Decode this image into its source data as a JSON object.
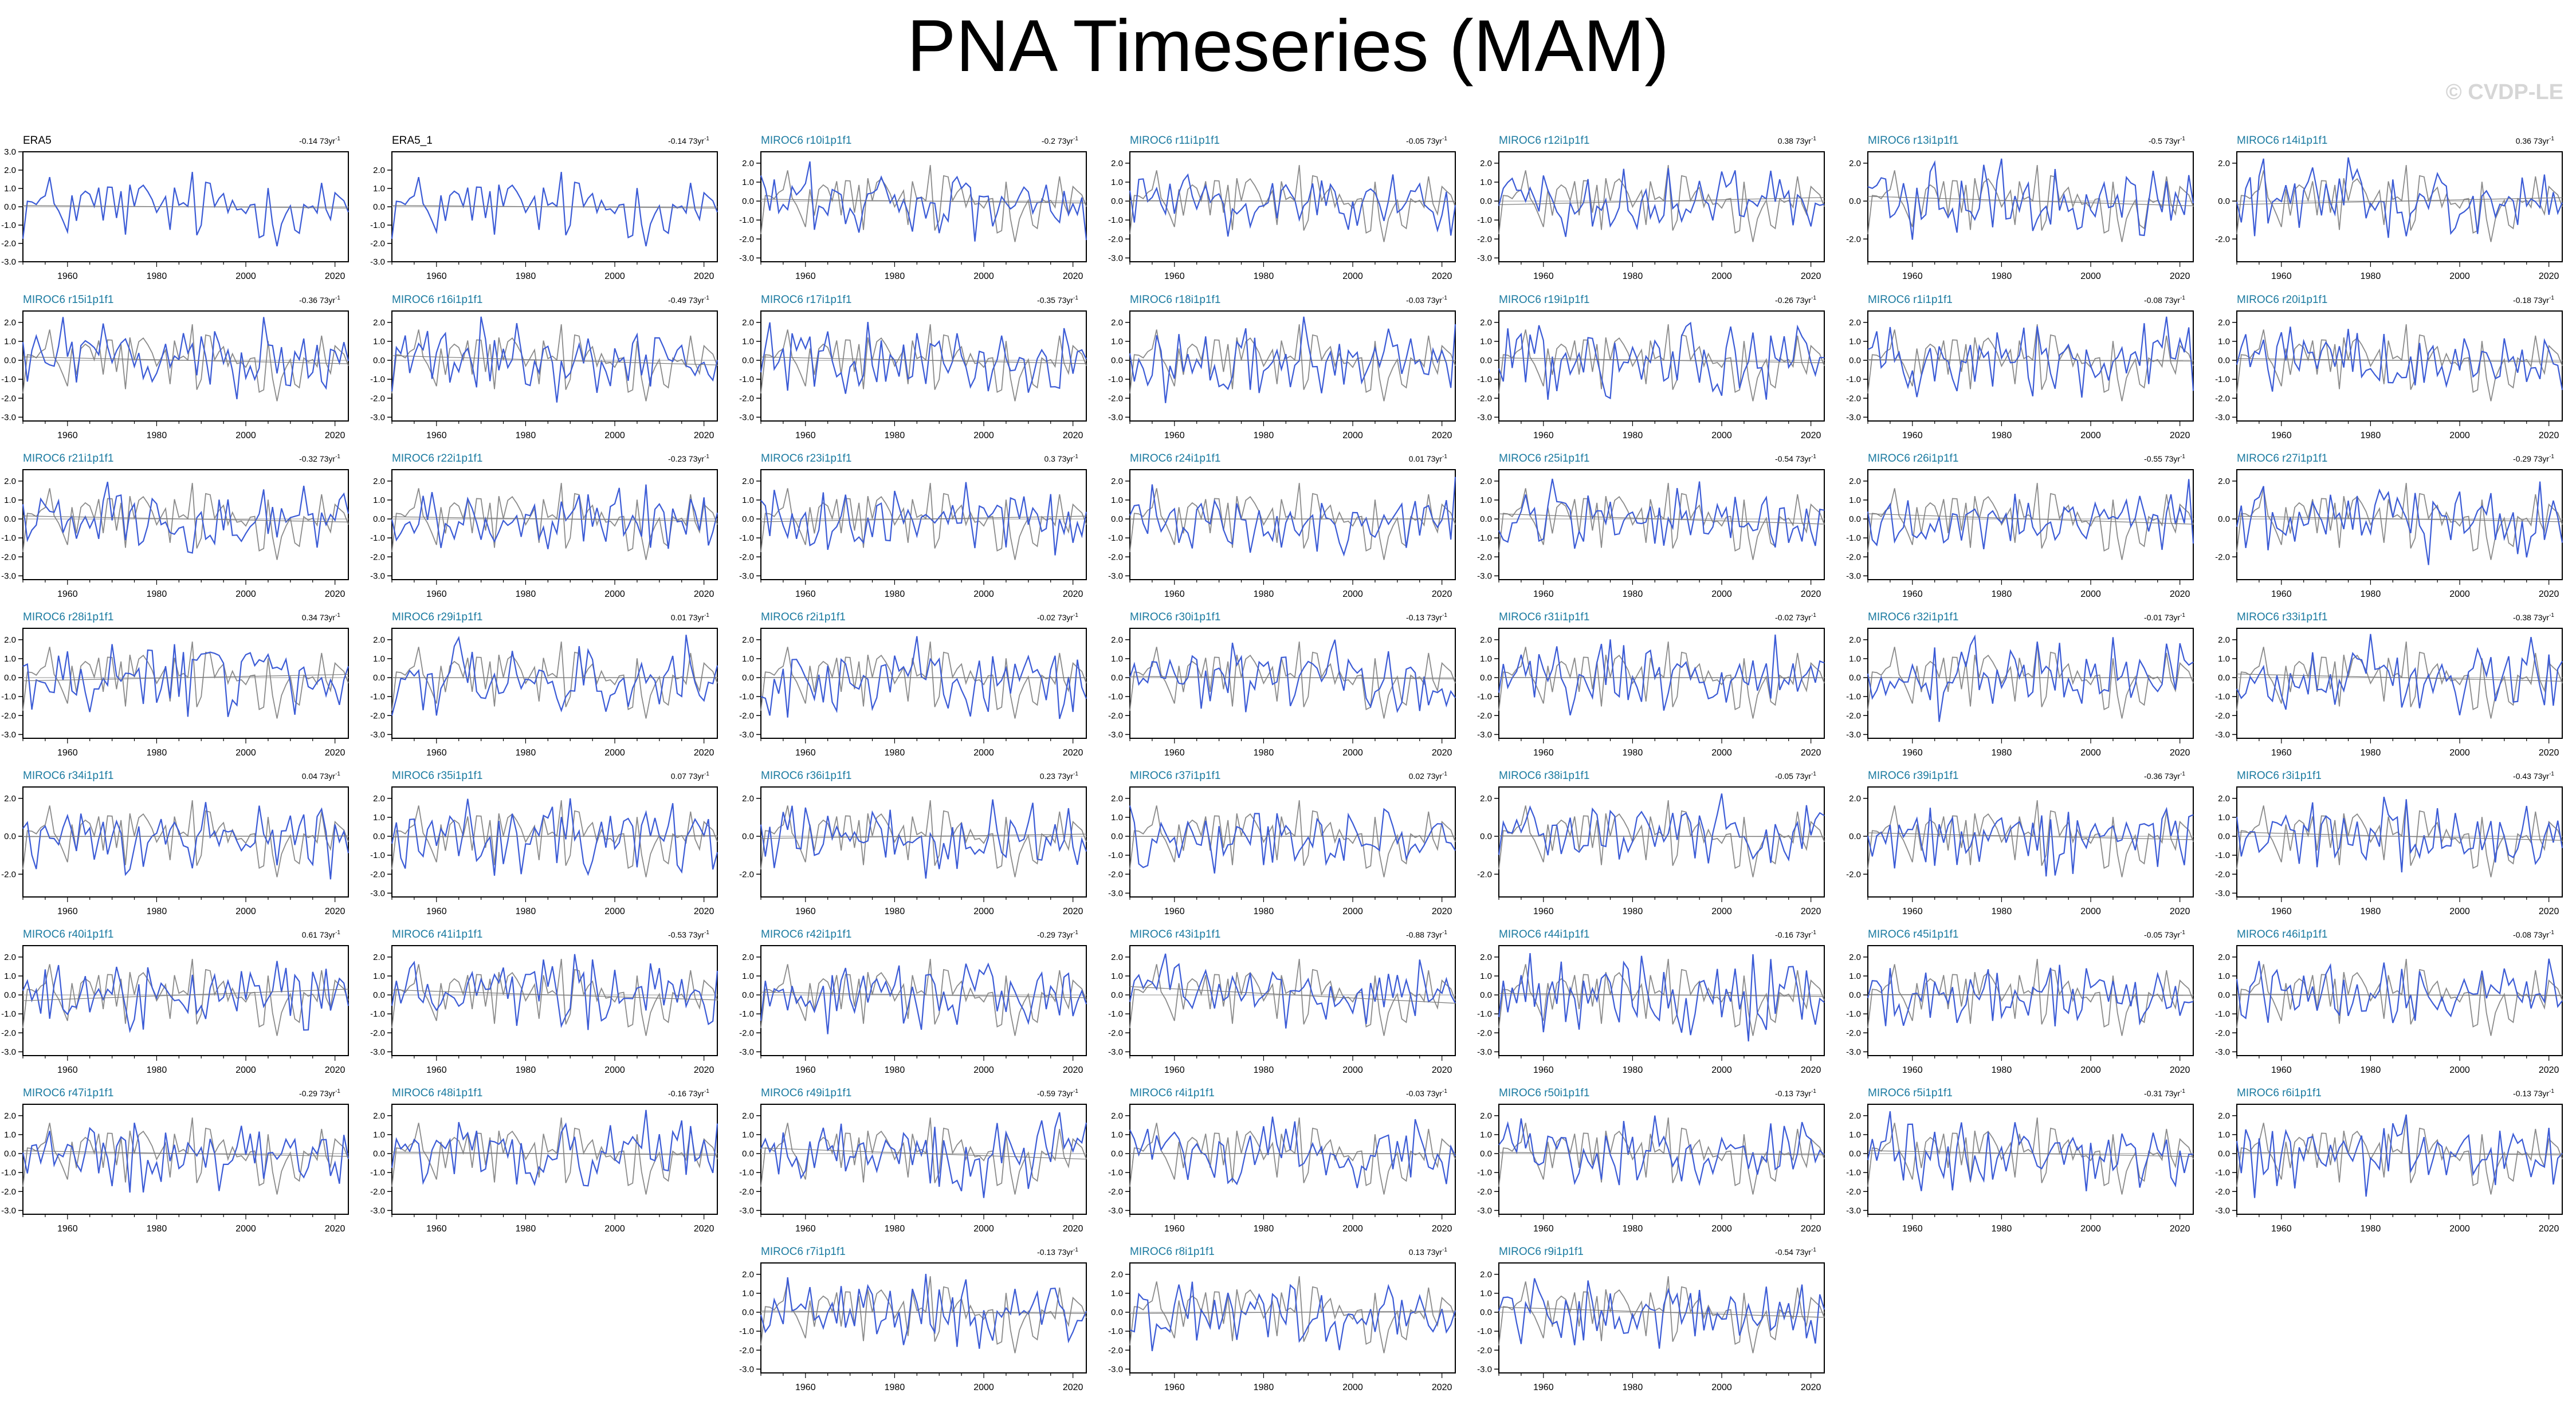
{
  "title": "PNA Timeseries (MAM)",
  "watermark": "© CVDP-LE",
  "colors": {
    "model_line": "#3b5bd6",
    "obs_line": "#8a8a8a",
    "zero_line": "#b4b4b4",
    "obs_title": "#000000",
    "model_title": "#1a7aa0"
  },
  "chart_data": {
    "type": "line",
    "x_range": [
      1950,
      2023
    ],
    "x_ticks": [
      "1960",
      "1980",
      "2000",
      "2020"
    ],
    "trend_unit": "73yr",
    "panels": [
      {
        "name": "ERA5",
        "trend": "-0.14",
        "ylim": [
          -3,
          3
        ],
        "yticks": [
          "3.0",
          "2.0",
          "1.0",
          "0.0",
          "-1.0",
          "-2.0",
          "-3.0"
        ],
        "obs": true
      },
      {
        "name": "ERA5_1",
        "trend": "-0.14",
        "ylim": [
          -3,
          3
        ],
        "yticks": [
          "2.0",
          "1.0",
          "0.0",
          "-1.0",
          "-2.0",
          "-3.0"
        ],
        "obs": true
      },
      {
        "name": "MIROC6 r10i1p1f1",
        "trend": "-0.2"
      },
      {
        "name": "MIROC6 r11i1p1f1",
        "trend": "-0.05"
      },
      {
        "name": "MIROC6 r12i1p1f1",
        "trend": "0.38"
      },
      {
        "name": "MIROC6 r13i1p1f1",
        "trend": "-0.5",
        "yticks": [
          "2.0",
          "0.0",
          "-2.0"
        ]
      },
      {
        "name": "MIROC6 r14i1p1f1",
        "trend": "0.36",
        "yticks": [
          "2.0",
          "0.0",
          "-2.0"
        ]
      },
      {
        "name": "MIROC6 r15i1p1f1",
        "trend": "-0.36"
      },
      {
        "name": "MIROC6 r16i1p1f1",
        "trend": "-0.49"
      },
      {
        "name": "MIROC6 r17i1p1f1",
        "trend": "-0.35"
      },
      {
        "name": "MIROC6 r18i1p1f1",
        "trend": "-0.03"
      },
      {
        "name": "MIROC6 r19i1p1f1",
        "trend": "-0.26"
      },
      {
        "name": "MIROC6 r1i1p1f1",
        "trend": "-0.08"
      },
      {
        "name": "MIROC6 r20i1p1f1",
        "trend": "-0.18"
      },
      {
        "name": "MIROC6 r21i1p1f1",
        "trend": "-0.32"
      },
      {
        "name": "MIROC6 r22i1p1f1",
        "trend": "-0.23"
      },
      {
        "name": "MIROC6 r23i1p1f1",
        "trend": "0.3"
      },
      {
        "name": "MIROC6 r24i1p1f1",
        "trend": "0.01"
      },
      {
        "name": "MIROC6 r25i1p1f1",
        "trend": "-0.54"
      },
      {
        "name": "MIROC6 r26i1p1f1",
        "trend": "-0.55"
      },
      {
        "name": "MIROC6 r27i1p1f1",
        "trend": "-0.29",
        "yticks": [
          "2.0",
          "0.0",
          "-2.0"
        ]
      },
      {
        "name": "MIROC6 r28i1p1f1",
        "trend": "0.34"
      },
      {
        "name": "MIROC6 r29i1p1f1",
        "trend": "0.01"
      },
      {
        "name": "MIROC6 r2i1p1f1",
        "trend": "-0.02"
      },
      {
        "name": "MIROC6 r30i1p1f1",
        "trend": "-0.13"
      },
      {
        "name": "MIROC6 r31i1p1f1",
        "trend": "-0.02"
      },
      {
        "name": "MIROC6 r32i1p1f1",
        "trend": "-0.01"
      },
      {
        "name": "MIROC6 r33i1p1f1",
        "trend": "-0.38"
      },
      {
        "name": "MIROC6 r34i1p1f1",
        "trend": "0.04",
        "yticks": [
          "2.0",
          "0.0",
          "-2.0"
        ]
      },
      {
        "name": "MIROC6 r35i1p1f1",
        "trend": "0.07"
      },
      {
        "name": "MIROC6 r36i1p1f1",
        "trend": "0.23",
        "yticks": [
          "2.0",
          "0.0",
          "-2.0"
        ]
      },
      {
        "name": "MIROC6 r37i1p1f1",
        "trend": "0.02"
      },
      {
        "name": "MIROC6 r38i1p1f1",
        "trend": "-0.05",
        "yticks": [
          "2.0",
          "0.0",
          "-2.0"
        ]
      },
      {
        "name": "MIROC6 r39i1p1f1",
        "trend": "-0.36",
        "yticks": [
          "2.0",
          "0.0",
          "-2.0"
        ]
      },
      {
        "name": "MIROC6 r3i1p1f1",
        "trend": "-0.43"
      },
      {
        "name": "MIROC6 r40i1p1f1",
        "trend": "0.61"
      },
      {
        "name": "MIROC6 r41i1p1f1",
        "trend": "-0.53"
      },
      {
        "name": "MIROC6 r42i1p1f1",
        "trend": "-0.29"
      },
      {
        "name": "MIROC6 r43i1p1f1",
        "trend": "-0.88"
      },
      {
        "name": "MIROC6 r44i1p1f1",
        "trend": "-0.16"
      },
      {
        "name": "MIROC6 r45i1p1f1",
        "trend": "-0.05"
      },
      {
        "name": "MIROC6 r46i1p1f1",
        "trend": "-0.08"
      },
      {
        "name": "MIROC6 r47i1p1f1",
        "trend": "-0.29"
      },
      {
        "name": "MIROC6 r48i1p1f1",
        "trend": "-0.16"
      },
      {
        "name": "MIROC6 r49i1p1f1",
        "trend": "-0.59"
      },
      {
        "name": "MIROC6 r4i1p1f1",
        "trend": "-0.03"
      },
      {
        "name": "MIROC6 r50i1p1f1",
        "trend": "-0.13"
      },
      {
        "name": "MIROC6 r5i1p1f1",
        "trend": "-0.31"
      },
      {
        "name": "MIROC6 r6i1p1f1",
        "trend": "-0.13"
      },
      {
        "name": "MIROC6 r7i1p1f1",
        "trend": "-0.13"
      },
      {
        "name": "MIROC6 r8i1p1f1",
        "trend": "0.13"
      },
      {
        "name": "MIROC6 r9i1p1f1",
        "trend": "-0.54"
      }
    ],
    "default_yticks": [
      "2.0",
      "1.0",
      "0.0",
      "-1.0",
      "-2.0",
      "-3.0"
    ],
    "default_ylim": [
      -3.2,
      2.6
    ]
  }
}
